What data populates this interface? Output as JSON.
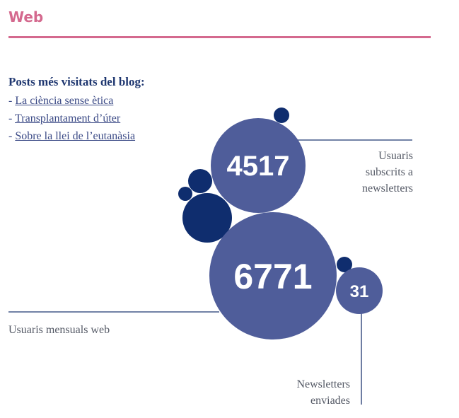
{
  "header": {
    "title": "Web"
  },
  "blog": {
    "heading": "Posts més visitats del blog:",
    "posts": [
      {
        "dash": "- ",
        "title": "La ciència sense ètica"
      },
      {
        "dash": "- ",
        "title": "Transplantament d’úter"
      },
      {
        "dash": "- ",
        "title": "Sobre la llei de l’eutanàsia"
      }
    ]
  },
  "stats": {
    "subscribers": {
      "value": "4517",
      "label_lines": [
        "Usuaris",
        "subscrits a",
        "newsletters"
      ]
    },
    "monthly_users": {
      "value": "6771",
      "label": "Usuaris mensuals web"
    },
    "newsletters_sent": {
      "value": "31",
      "label_lines": [
        "Newsletters",
        "enviades"
      ]
    }
  },
  "colors": {
    "accent": "#d4698e",
    "bubble_main": "#4f5d9a",
    "bubble_dark": "#0f2d6e",
    "heading": "#1f3770",
    "line": "#1f3770"
  }
}
